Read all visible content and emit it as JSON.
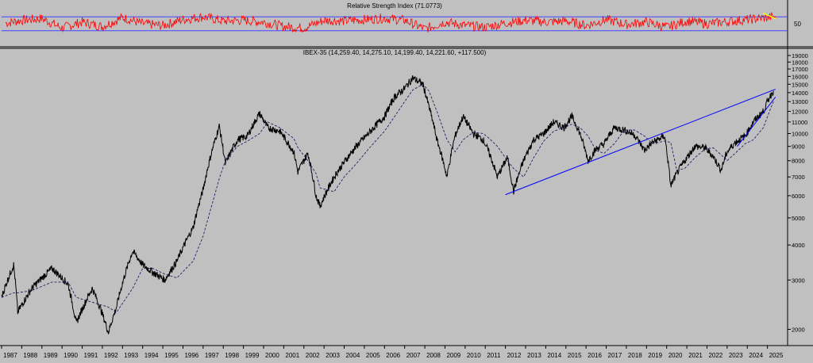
{
  "chart_data": [
    {
      "type": "line",
      "title": "Relative Strength Index (71.0773)",
      "xlabel": "",
      "ylabel": "",
      "ylim": [
        0,
        100
      ],
      "grid": false,
      "reference_levels": [
        70,
        30
      ],
      "y_tick_labels": [
        "50"
      ],
      "x": [
        1987.2,
        1988.0,
        1989.0,
        1990.0,
        1991.0,
        1992.0,
        1993.0,
        1994.0,
        1995.0,
        1996.0,
        1997.0,
        1998.0,
        1999.0,
        2000.0,
        2001.0,
        2002.0,
        2003.0,
        2004.0,
        2005.0,
        2006.0,
        2007.0,
        2008.0,
        2009.0,
        2010.0,
        2011.0,
        2012.0,
        2013.0,
        2014.0,
        2015.0,
        2016.0,
        2017.0,
        2018.0,
        2019.0,
        2020.0,
        2021.0,
        2022.0,
        2023.0,
        2024.0,
        2025.0,
        2025.4
      ],
      "series": [
        {
          "values": [
            52,
            60,
            65,
            38,
            55,
            42,
            68,
            50,
            45,
            62,
            70,
            58,
            60,
            55,
            42,
            38,
            60,
            58,
            62,
            66,
            60,
            35,
            55,
            45,
            40,
            52,
            60,
            55,
            58,
            45,
            62,
            48,
            55,
            40,
            58,
            50,
            56,
            62,
            68,
            71
          ]
        }
      ],
      "annotation_line": {
        "x": [
          2024.8,
          2025.4
        ],
        "y": [
          80,
          65
        ]
      }
    },
    {
      "type": "line",
      "title": "IBEX-35 (14,259.40, 14,275.10, 14,199.40, 14,221.60, +117.500)",
      "xlabel": "",
      "ylabel": "",
      "yscale": "log",
      "ylim": [
        1750,
        19500
      ],
      "grid": false,
      "y_ticks": [
        2000,
        3000,
        4000,
        5000,
        6000,
        7000,
        8000,
        9000,
        10000,
        11000,
        12000,
        13000,
        14000,
        15000,
        16000,
        17000,
        18000,
        19000
      ],
      "x_ticks": [
        1987,
        1988,
        1989,
        1990,
        1991,
        1992,
        1993,
        1994,
        1995,
        1996,
        1997,
        1998,
        1999,
        2000,
        2001,
        2002,
        2003,
        2004,
        2005,
        2006,
        2007,
        2008,
        2009,
        2010,
        2011,
        2012,
        2013,
        2014,
        2015,
        2016,
        2017,
        2018,
        2019,
        2020,
        2021,
        2022,
        2023,
        2024,
        2025
      ],
      "x": [
        1987.0,
        1987.6,
        1987.8,
        1988.5,
        1989.5,
        1990.3,
        1990.7,
        1991.5,
        1992.3,
        1992.7,
        1993.5,
        1994.0,
        1994.5,
        1995.1,
        1995.7,
        1996.5,
        1997.0,
        1997.8,
        1998.1,
        1998.7,
        1999.2,
        1999.8,
        2000.2,
        2000.8,
        2001.5,
        2001.7,
        2002.2,
        2002.6,
        2002.8,
        2003.5,
        2004.0,
        2004.6,
        2005.2,
        2006.0,
        2006.5,
        2007.0,
        2007.4,
        2007.9,
        2008.2,
        2008.6,
        2009.1,
        2009.5,
        2009.9,
        2010.4,
        2010.9,
        2011.2,
        2011.6,
        2012.1,
        2012.4,
        2012.9,
        2013.4,
        2013.9,
        2014.4,
        2014.9,
        2015.3,
        2015.7,
        2016.1,
        2016.5,
        2016.9,
        2017.4,
        2017.9,
        2018.4,
        2018.9,
        2019.3,
        2019.9,
        2020.2,
        2020.5,
        2020.9,
        2021.4,
        2021.9,
        2022.3,
        2022.7,
        2023.0,
        2023.4,
        2023.9,
        2024.3,
        2024.8,
        2025.1,
        2025.3
      ],
      "series": [
        {
          "name": "",
          "values": [
            2600,
            3400,
            2300,
            2800,
            3300,
            2900,
            2100,
            2800,
            1950,
            2400,
            3800,
            3400,
            3200,
            3000,
            3500,
            4600,
            6300,
            10600,
            7800,
            9500,
            9800,
            11800,
            10500,
            10200,
            8600,
            7300,
            8500,
            6000,
            5500,
            7000,
            7900,
            9000,
            10000,
            11500,
            13500,
            14500,
            15800,
            15000,
            12500,
            9500,
            7000,
            9800,
            11500,
            10000,
            9500,
            8500,
            7000,
            8200,
            6200,
            8000,
            9500,
            10000,
            11000,
            10500,
            11500,
            10000,
            8000,
            8800,
            9200,
            10500,
            10300,
            9900,
            8700,
            9300,
            9800,
            6500,
            7200,
            8000,
            9000,
            8900,
            8300,
            7400,
            8600,
            9300,
            9800,
            11000,
            12000,
            13500,
            14200
          ]
        },
        {
          "name": "",
          "values": [
            2600,
            2700,
            2700,
            2750,
            2950,
            2950,
            2600,
            2500,
            2400,
            2300,
            2800,
            3300,
            3300,
            3150,
            3050,
            3500,
            4300,
            6900,
            8000,
            9000,
            9400,
            10000,
            11000,
            10500,
            9600,
            8900,
            8000,
            7200,
            6400,
            6200,
            7000,
            7800,
            8800,
            10200,
            11500,
            13000,
            14300,
            15000,
            14200,
            12000,
            9500,
            8600,
            9500,
            10100,
            10000,
            9600,
            9000,
            8000,
            7500,
            7000,
            8200,
            9400,
            10200,
            10500,
            10800,
            10500,
            9800,
            8700,
            8500,
            9200,
            10300,
            10300,
            9800,
            9200,
            9400,
            9300,
            7400,
            7500,
            8200,
            8800,
            8900,
            8400,
            8000,
            8500,
            9200,
            9500,
            10500,
            12000,
            13000
          ]
        }
      ],
      "trendlines": [
        {
          "x": [
            2012.0,
            2025.4
          ],
          "y": [
            6050,
            14400
          ]
        },
        {
          "x": [
            2023.5,
            2025.4
          ],
          "y": [
            9000,
            13500
          ]
        }
      ]
    }
  ]
}
